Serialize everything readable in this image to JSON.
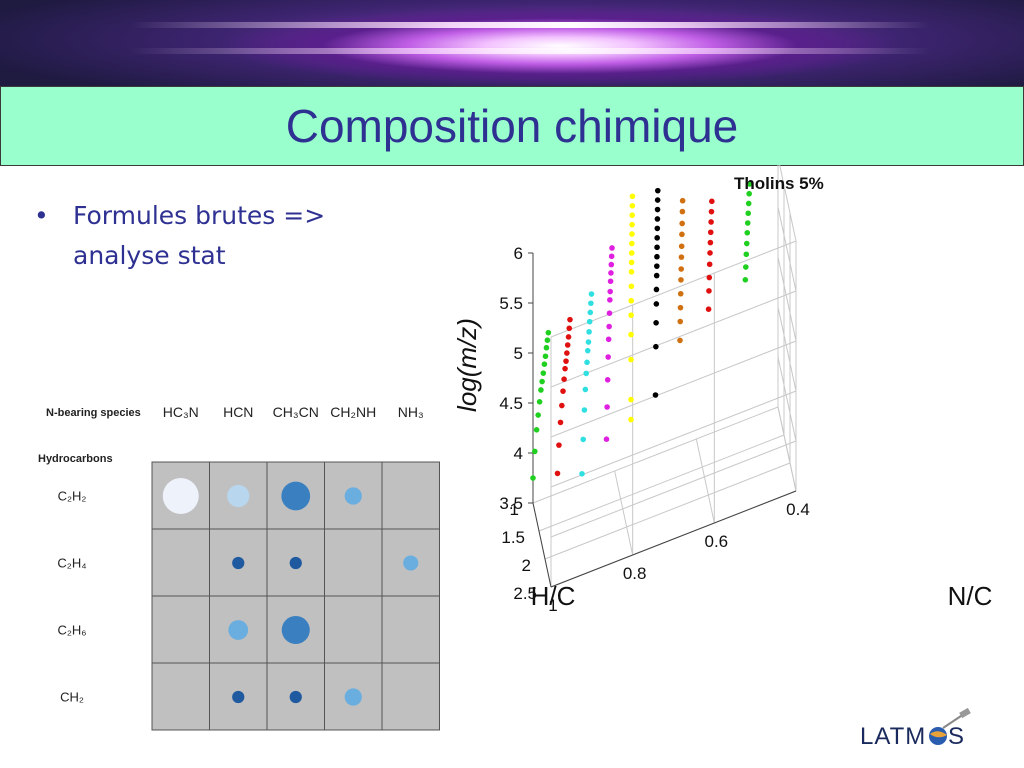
{
  "slide": {
    "title": "Composition chimique",
    "bullet": "Formules brutes => analyse stat",
    "bullet_marker": "•"
  },
  "chart_data": [
    {
      "type": "bubble-grid",
      "column_header_label": "N-bearing species",
      "row_header_label": "Hydrocarbons",
      "columns": [
        "HC₃N",
        "HCN",
        "CH₃CN",
        "CH₂NH",
        "NH₃"
      ],
      "rows": [
        "C₂H₂",
        "C₂H₄",
        "C₂H₆",
        "CH₂"
      ],
      "cells": [
        {
          "row": 0,
          "col": 0,
          "size": 1.0,
          "color": "#eef2fb"
        },
        {
          "row": 0,
          "col": 1,
          "size": 0.62,
          "color": "#b8d6ee"
        },
        {
          "row": 0,
          "col": 2,
          "size": 0.8,
          "color": "#3a7fc0"
        },
        {
          "row": 0,
          "col": 3,
          "size": 0.48,
          "color": "#6aaee0"
        },
        {
          "row": 1,
          "col": 1,
          "size": 0.34,
          "color": "#1f5aa0"
        },
        {
          "row": 1,
          "col": 2,
          "size": 0.34,
          "color": "#1f5aa0"
        },
        {
          "row": 1,
          "col": 4,
          "size": 0.42,
          "color": "#6aaee0"
        },
        {
          "row": 2,
          "col": 1,
          "size": 0.55,
          "color": "#6aaee0"
        },
        {
          "row": 2,
          "col": 2,
          "size": 0.78,
          "color": "#3a7fc0"
        },
        {
          "row": 3,
          "col": 1,
          "size": 0.34,
          "color": "#1f5aa0"
        },
        {
          "row": 3,
          "col": 2,
          "size": 0.34,
          "color": "#1f5aa0"
        },
        {
          "row": 3,
          "col": 3,
          "size": 0.48,
          "color": "#6aaee0"
        }
      ],
      "colors": {
        "cell_bg": "#c0c0c0",
        "grid_line": "#555555"
      }
    },
    {
      "type": "scatter3d",
      "title": "Tholins 5%",
      "xlabel": "H/C",
      "ylabel": "N/C",
      "zlabel": "log(m/z)",
      "xlim": [
        1,
        2.5
      ],
      "ylim": [
        0.4,
        1
      ],
      "zlim": [
        3.5,
        6
      ],
      "xticks": [
        "1",
        "1.5",
        "2",
        "2.5"
      ],
      "yticks": [
        "1",
        "0.8",
        "0.6",
        "0.4"
      ],
      "zticks": [
        "3.5",
        "4",
        "4.5",
        "5",
        "5.5",
        "6"
      ],
      "grid": true,
      "series": [
        {
          "color": "#000000",
          "points": [
            [
              1.0,
              0.7,
              4.1
            ],
            [
              1.03,
              0.7,
              4.6
            ],
            [
              1.05,
              0.7,
              4.85
            ],
            [
              1.07,
              0.7,
              5.05
            ],
            [
              1.08,
              0.7,
              5.2
            ],
            [
              1.1,
              0.7,
              5.35
            ],
            [
              1.11,
              0.7,
              5.45
            ],
            [
              1.12,
              0.7,
              5.55
            ],
            [
              1.13,
              0.7,
              5.65
            ],
            [
              1.14,
              0.7,
              5.75
            ],
            [
              1.15,
              0.7,
              5.85
            ],
            [
              1.16,
              0.7,
              5.95
            ],
            [
              1.17,
              0.7,
              6.05
            ],
            [
              1.18,
              0.7,
              6.15
            ],
            [
              1.19,
              0.7,
              6.25
            ]
          ]
        },
        {
          "color": "#ffff00",
          "points": [
            [
              1.0,
              0.76,
              3.95
            ],
            [
              1.0,
              0.76,
              4.15
            ],
            [
              1.0,
              0.76,
              4.55
            ],
            [
              1.0,
              0.76,
              4.8
            ],
            [
              1.01,
              0.76,
              5.0
            ],
            [
              1.02,
              0.76,
              5.15
            ],
            [
              1.03,
              0.76,
              5.3
            ],
            [
              1.04,
              0.76,
              5.45
            ],
            [
              1.05,
              0.76,
              5.55
            ],
            [
              1.06,
              0.76,
              5.65
            ],
            [
              1.07,
              0.76,
              5.75
            ],
            [
              1.08,
              0.76,
              5.85
            ],
            [
              1.09,
              0.76,
              5.95
            ],
            [
              1.1,
              0.76,
              6.05
            ],
            [
              1.11,
              0.76,
              6.15
            ],
            [
              1.12,
              0.76,
              6.25
            ]
          ]
        },
        {
          "color": "#e020e0",
          "points": [
            [
              1.0,
              0.82,
              3.85
            ],
            [
              1.05,
              0.82,
              4.2
            ],
            [
              1.1,
              0.82,
              4.5
            ],
            [
              1.14,
              0.82,
              4.75
            ],
            [
              1.18,
              0.82,
              4.95
            ],
            [
              1.22,
              0.82,
              5.1
            ],
            [
              1.25,
              0.82,
              5.25
            ],
            [
              1.28,
              0.82,
              5.4
            ],
            [
              1.31,
              0.82,
              5.5
            ],
            [
              1.34,
              0.82,
              5.62
            ],
            [
              1.37,
              0.82,
              5.72
            ],
            [
              1.4,
              0.82,
              5.82
            ],
            [
              1.43,
              0.82,
              5.92
            ],
            [
              1.46,
              0.82,
              6.02
            ]
          ]
        },
        {
          "color": "#30e0e0",
          "points": [
            [
              1.0,
              0.88,
              3.6
            ],
            [
              1.1,
              0.88,
              4.0
            ],
            [
              1.2,
              0.88,
              4.35
            ],
            [
              1.28,
              0.88,
              4.6
            ],
            [
              1.35,
              0.88,
              4.8
            ],
            [
              1.42,
              0.88,
              4.95
            ],
            [
              1.48,
              0.88,
              5.1
            ],
            [
              1.54,
              0.88,
              5.22
            ],
            [
              1.59,
              0.88,
              5.35
            ],
            [
              1.64,
              0.88,
              5.48
            ],
            [
              1.69,
              0.88,
              5.6
            ],
            [
              1.74,
              0.88,
              5.72
            ],
            [
              1.79,
              0.88,
              5.84
            ]
          ]
        },
        {
          "color": "#e01010",
          "points": [
            [
              1.0,
              0.94,
              3.7
            ],
            [
              1.12,
              0.94,
              4.05
            ],
            [
              1.25,
              0.94,
              4.35
            ],
            [
              1.36,
              0.94,
              4.58
            ],
            [
              1.46,
              0.94,
              4.78
            ],
            [
              1.55,
              0.94,
              4.95
            ],
            [
              1.63,
              0.94,
              5.1
            ],
            [
              1.71,
              0.94,
              5.22
            ],
            [
              1.78,
              0.94,
              5.34
            ],
            [
              1.85,
              0.94,
              5.46
            ],
            [
              1.92,
              0.94,
              5.58
            ],
            [
              1.98,
              0.94,
              5.7
            ],
            [
              2.04,
              0.94,
              5.82
            ]
          ]
        },
        {
          "color": "#20d020",
          "points": [
            [
              1.0,
              1.0,
              3.75
            ],
            [
              1.15,
              1.0,
              4.1
            ],
            [
              1.3,
              1.0,
              4.4
            ],
            [
              1.43,
              1.0,
              4.62
            ],
            [
              1.55,
              1.0,
              4.82
            ],
            [
              1.66,
              1.0,
              5.0
            ],
            [
              1.76,
              1.0,
              5.14
            ],
            [
              1.86,
              1.0,
              5.28
            ],
            [
              1.95,
              1.0,
              5.42
            ],
            [
              2.04,
              1.0,
              5.55
            ],
            [
              2.12,
              1.0,
              5.68
            ],
            [
              2.2,
              1.0,
              5.8
            ],
            [
              2.28,
              1.0,
              5.92
            ]
          ]
        },
        {
          "color": "#d07010",
          "points": [
            [
              1.0,
              0.64,
              4.55
            ],
            [
              1.02,
              0.64,
              4.75
            ],
            [
              1.04,
              0.64,
              4.9
            ],
            [
              1.06,
              0.64,
              5.05
            ],
            [
              1.08,
              0.64,
              5.2
            ],
            [
              1.1,
              0.64,
              5.32
            ],
            [
              1.12,
              0.64,
              5.45
            ],
            [
              1.14,
              0.64,
              5.57
            ],
            [
              1.16,
              0.64,
              5.7
            ],
            [
              1.18,
              0.64,
              5.82
            ],
            [
              1.2,
              0.64,
              5.95
            ],
            [
              1.22,
              0.64,
              6.07
            ]
          ]
        },
        {
          "color": "#e01010",
          "points": [
            [
              1.0,
              0.57,
              4.75
            ],
            [
              1.03,
              0.57,
              4.95
            ],
            [
              1.06,
              0.57,
              5.1
            ],
            [
              1.09,
              0.57,
              5.25
            ],
            [
              1.12,
              0.57,
              5.38
            ],
            [
              1.15,
              0.57,
              5.5
            ],
            [
              1.18,
              0.57,
              5.62
            ],
            [
              1.21,
              0.57,
              5.74
            ],
            [
              1.24,
              0.57,
              5.86
            ],
            [
              1.27,
              0.57,
              5.98
            ]
          ]
        },
        {
          "color": "#20d020",
          "points": [
            [
              1.0,
              0.48,
              4.9
            ],
            [
              1.04,
              0.48,
              5.05
            ],
            [
              1.08,
              0.48,
              5.2
            ],
            [
              1.12,
              0.48,
              5.33
            ],
            [
              1.16,
              0.48,
              5.46
            ],
            [
              1.2,
              0.48,
              5.58
            ],
            [
              1.24,
              0.48,
              5.7
            ],
            [
              1.28,
              0.48,
              5.82
            ],
            [
              1.32,
              0.48,
              5.94
            ],
            [
              1.36,
              0.48,
              6.06
            ]
          ]
        }
      ]
    }
  ],
  "logo": {
    "text": "LATMOS"
  }
}
